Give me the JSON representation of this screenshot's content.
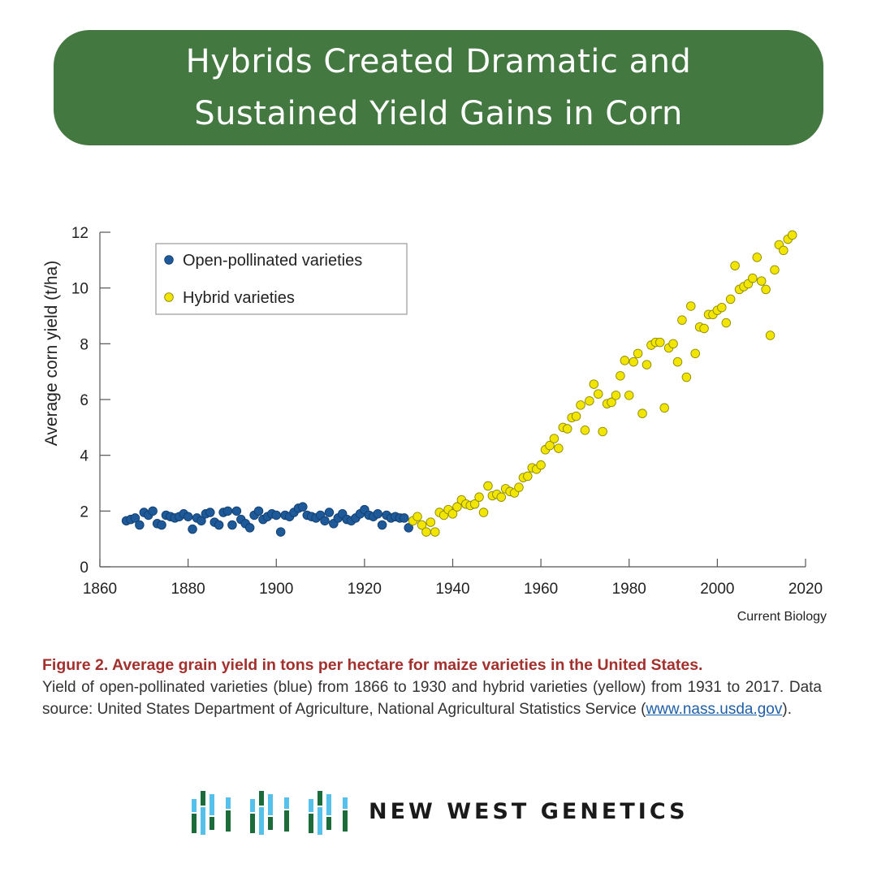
{
  "banner": {
    "title": "Hybrids Created Dramatic and Sustained Yield Gains in Corn"
  },
  "chart_data": {
    "type": "scatter",
    "ylabel": "Average corn yield (t/ha)",
    "xlabel": "",
    "xlim": [
      1860,
      2020
    ],
    "ylim": [
      0,
      12
    ],
    "xticks": [
      1860,
      1880,
      1900,
      1920,
      1940,
      1960,
      1980,
      2000,
      2020
    ],
    "yticks": [
      0,
      2,
      4,
      6,
      8,
      10,
      12
    ],
    "legend_position": "top-left",
    "source_label": "Current Biology",
    "grid": false,
    "series": [
      {
        "name": "Open-pollinated varieties",
        "color": "#1e5a9a",
        "x": [
          1866,
          1867,
          1868,
          1869,
          1870,
          1871,
          1872,
          1873,
          1874,
          1875,
          1876,
          1877,
          1878,
          1879,
          1880,
          1881,
          1882,
          1883,
          1884,
          1885,
          1886,
          1887,
          1888,
          1889,
          1890,
          1891,
          1892,
          1893,
          1894,
          1895,
          1896,
          1897,
          1898,
          1899,
          1900,
          1901,
          1902,
          1903,
          1904,
          1905,
          1906,
          1907,
          1908,
          1909,
          1910,
          1911,
          1912,
          1913,
          1914,
          1915,
          1916,
          1917,
          1918,
          1919,
          1920,
          1921,
          1922,
          1923,
          1924,
          1925,
          1926,
          1927,
          1928,
          1929,
          1930
        ],
        "y": [
          1.65,
          1.7,
          1.75,
          1.5,
          1.95,
          1.85,
          2.0,
          1.55,
          1.5,
          1.85,
          1.8,
          1.75,
          1.8,
          1.9,
          1.8,
          1.35,
          1.75,
          1.65,
          1.9,
          1.95,
          1.6,
          1.5,
          1.95,
          2.0,
          1.5,
          2.0,
          1.7,
          1.55,
          1.4,
          1.85,
          2.0,
          1.7,
          1.8,
          1.9,
          1.85,
          1.25,
          1.85,
          1.8,
          1.95,
          2.1,
          2.15,
          1.85,
          1.8,
          1.75,
          1.85,
          1.65,
          1.95,
          1.55,
          1.75,
          1.9,
          1.7,
          1.65,
          1.75,
          1.9,
          2.05,
          1.85,
          1.8,
          1.9,
          1.5,
          1.85,
          1.75,
          1.8,
          1.75,
          1.75,
          1.4
        ]
      },
      {
        "name": "Hybrid varieties",
        "color": "#f2e600",
        "x": [
          1931,
          1932,
          1933,
          1934,
          1935,
          1936,
          1937,
          1938,
          1939,
          1940,
          1941,
          1942,
          1943,
          1944,
          1945,
          1946,
          1947,
          1948,
          1949,
          1950,
          1951,
          1952,
          1953,
          1954,
          1955,
          1956,
          1957,
          1958,
          1959,
          1960,
          1961,
          1962,
          1963,
          1964,
          1965,
          1966,
          1967,
          1968,
          1969,
          1970,
          1971,
          1972,
          1973,
          1974,
          1975,
          1976,
          1977,
          1978,
          1979,
          1980,
          1981,
          1982,
          1983,
          1984,
          1985,
          1986,
          1987,
          1988,
          1989,
          1990,
          1991,
          1992,
          1993,
          1994,
          1995,
          1996,
          1997,
          1998,
          1999,
          2000,
          2001,
          2002,
          2003,
          2004,
          2005,
          2006,
          2007,
          2008,
          2009,
          2010,
          2011,
          2012,
          2013,
          2014,
          2015,
          2016,
          2017
        ],
        "y": [
          1.65,
          1.8,
          1.5,
          1.25,
          1.6,
          1.25,
          1.95,
          1.85,
          2.05,
          1.9,
          2.15,
          2.4,
          2.25,
          2.2,
          2.25,
          2.5,
          1.95,
          2.9,
          2.55,
          2.6,
          2.5,
          2.8,
          2.7,
          2.65,
          2.85,
          3.2,
          3.25,
          3.55,
          3.5,
          3.65,
          4.2,
          4.35,
          4.6,
          4.25,
          5.0,
          4.95,
          5.35,
          5.4,
          5.8,
          4.9,
          5.95,
          6.55,
          6.2,
          4.85,
          5.85,
          5.9,
          6.15,
          6.85,
          7.4,
          6.15,
          7.35,
          7.65,
          5.5,
          7.25,
          7.95,
          8.05,
          8.05,
          5.7,
          7.85,
          8.0,
          7.35,
          8.85,
          6.8,
          9.35,
          7.65,
          8.6,
          8.55,
          9.05,
          9.05,
          9.2,
          9.3,
          8.75,
          9.6,
          10.8,
          9.95,
          10.05,
          10.15,
          10.35,
          11.1,
          10.25,
          9.95,
          8.3,
          10.65,
          11.55,
          11.35,
          11.75,
          11.9
        ]
      }
    ]
  },
  "caption": {
    "title": "Figure 2. Average grain yield in tons per hectare for maize varieties in the United States.",
    "body": "Yield of open-pollinated varieties (blue) from 1866 to 1930 and hybrid varieties (yellow) from 1931 to 2017. Data source: United States Department of Agriculture, National Agricultural Statistics Service (",
    "link": "www.nass.usda.gov",
    "tail": ")."
  },
  "logo": {
    "text": "NEW WEST GENETICS",
    "colors": {
      "green": "#1c6b3a",
      "blue": "#55c1ea"
    }
  }
}
